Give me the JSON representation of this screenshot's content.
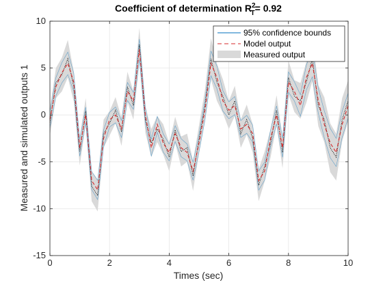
{
  "chart_data": {
    "type": "line",
    "title": {
      "prefix": "Coefficient of determination R",
      "superscript": "2",
      "subscript": "T",
      "suffix": "= 0.92"
    },
    "xlabel": "Times (sec)",
    "ylabel": "Measured and simulated outputs 1",
    "xlim": [
      0,
      10
    ],
    "ylim": [
      -15,
      10
    ],
    "xticks": [
      0,
      2,
      4,
      6,
      8,
      10
    ],
    "yticks": [
      -15,
      -10,
      -5,
      0,
      5,
      10
    ],
    "grid": true,
    "legend_position": "top-right",
    "legend": [
      {
        "label": "95% confidence bounds",
        "style": "solid",
        "color": "#0072bd"
      },
      {
        "label": "Model output",
        "style": "dashed",
        "color": "#d62728"
      },
      {
        "label": "Measured output",
        "style": "patch",
        "color": "#d9d9d9"
      }
    ],
    "x": [
      0.0,
      0.2,
      0.4,
      0.6,
      0.8,
      1.0,
      1.2,
      1.4,
      1.6,
      1.8,
      2.0,
      2.2,
      2.4,
      2.6,
      2.8,
      3.0,
      3.2,
      3.4,
      3.6,
      3.8,
      4.0,
      4.2,
      4.4,
      4.6,
      4.8,
      5.0,
      5.2,
      5.4,
      5.6,
      5.8,
      6.0,
      6.2,
      6.4,
      6.6,
      6.8,
      7.0,
      7.2,
      7.4,
      7.6,
      7.8,
      8.0,
      8.2,
      8.4,
      8.6,
      8.8,
      9.0,
      9.2,
      9.4,
      9.6,
      9.8,
      10.0
    ],
    "series": [
      {
        "name": "Model output",
        "values": [
          -0.5,
          3.0,
          4.5,
          5.5,
          3.5,
          -3.5,
          0.0,
          -7.0,
          -8.0,
          -2.5,
          -0.5,
          0.0,
          -1.5,
          2.5,
          1.5,
          7.0,
          0.0,
          -3.5,
          -1.0,
          -3.0,
          -4.0,
          -2.0,
          -3.5,
          -4.0,
          -6.0,
          -3.0,
          0.5,
          5.5,
          4.0,
          1.5,
          0.5,
          1.0,
          -1.5,
          -1.0,
          -2.0,
          -7.0,
          -6.0,
          -2.5,
          0.0,
          -3.5,
          3.5,
          2.5,
          1.0,
          4.0,
          5.5,
          1.5,
          -1.0,
          -3.0,
          -4.0,
          -1.0,
          1.0
        ]
      },
      {
        "name": "Measured output",
        "values": [
          -0.8,
          3.4,
          4.3,
          6.0,
          3.0,
          -3.9,
          0.4,
          -7.6,
          -8.6,
          -2.0,
          -0.9,
          0.5,
          -1.8,
          3.0,
          1.0,
          7.5,
          -0.5,
          -3.0,
          -1.5,
          -2.6,
          -4.5,
          -1.6,
          -3.9,
          -3.5,
          -6.5,
          -2.6,
          1.0,
          6.0,
          3.5,
          2.0,
          0.0,
          1.5,
          -2.0,
          -0.5,
          -2.5,
          -7.5,
          -5.5,
          -3.0,
          0.5,
          -4.0,
          4.0,
          2.0,
          1.5,
          3.5,
          6.0,
          1.0,
          -0.5,
          -3.5,
          -4.5,
          -0.5,
          1.5
        ]
      }
    ],
    "confidence_halfwidth": [
      1.4,
      1.6,
      1.8,
      2.0,
      1.6,
      1.5,
      1.4,
      1.6,
      1.7,
      1.5,
      1.3,
      1.4,
      1.5,
      1.6,
      1.5,
      1.8,
      1.4,
      1.5,
      1.4,
      1.6,
      1.5,
      1.4,
      1.6,
      1.5,
      1.6,
      1.5,
      1.7,
      2.2,
      2.0,
      1.8,
      1.5,
      1.6,
      1.5,
      1.6,
      1.5,
      1.7,
      1.6,
      1.5,
      1.6,
      1.7,
      1.8,
      1.7,
      1.9,
      2.2,
      2.4,
      2.2,
      2.4,
      2.6,
      2.5,
      2.3,
      2.2
    ]
  }
}
